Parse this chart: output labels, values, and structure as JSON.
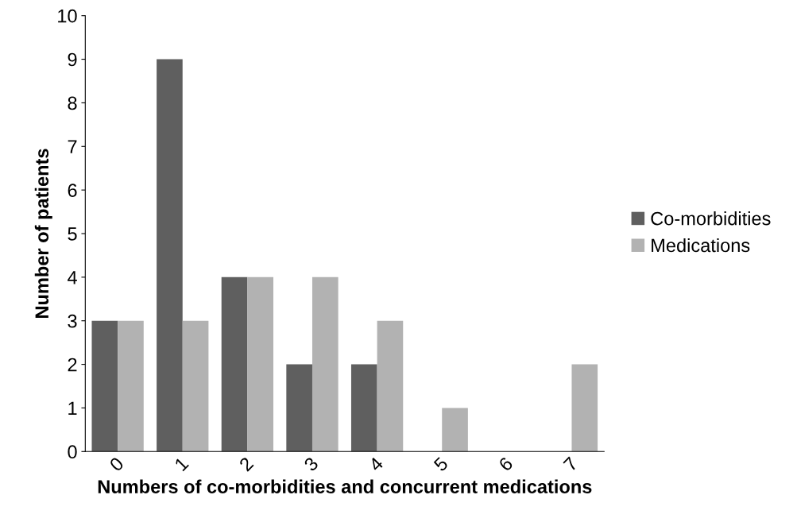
{
  "chart_data": {
    "type": "bar",
    "xlabel": "Numbers of co-morbidities and concurrent medications",
    "ylabel": "Number of patients",
    "categories": [
      "0",
      "1",
      "2",
      "3",
      "4",
      "5",
      "6",
      "7"
    ],
    "series": [
      {
        "name": "Co-morbidities",
        "color": "#5f5f5f",
        "values": [
          3,
          9,
          4,
          2,
          2,
          0,
          0,
          0
        ]
      },
      {
        "name": "Medications",
        "color": "#b2b2b2",
        "values": [
          3,
          3,
          4,
          4,
          3,
          1,
          0,
          2
        ]
      }
    ],
    "ylim": [
      0,
      10
    ],
    "yticks": [
      0,
      1,
      2,
      3,
      4,
      5,
      6,
      7,
      8,
      9,
      10
    ],
    "grid": false,
    "legend": "right"
  }
}
